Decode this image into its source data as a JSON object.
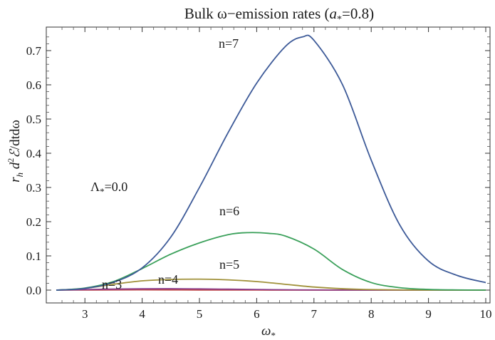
{
  "chart_data": {
    "type": "line",
    "title": "Bulk ω−emission rates (a₊=0.8)",
    "title_parts": {
      "prefix": "Bulk ω−emission rates (",
      "var": "a",
      "sub": "*",
      "suffix": "=0.8)"
    },
    "xlabel": "ω₊",
    "xlabel_parts": {
      "var": "ω",
      "sub": "*"
    },
    "ylabel": "r_h d²ℰ/dtdω",
    "ylabel_parts": {
      "r": "r",
      "h": "h",
      "d": " d",
      "exp": "2",
      "E": "ℰ",
      "rest": "/dtdω"
    },
    "xlim": [
      2.5,
      10
    ],
    "ylim": [
      0,
      0.75
    ],
    "xticks": [
      "3",
      "4",
      "5",
      "6",
      "7",
      "8",
      "9",
      "10"
    ],
    "yticks": [
      "0.0",
      "0.1",
      "0.2",
      "0.3",
      "0.4",
      "0.5",
      "0.6",
      "0.7"
    ],
    "grid": false,
    "annotations": [
      {
        "key": "lambda",
        "text": "Λ₊=0.0",
        "parts": {
          "var": "Λ",
          "sub": "*",
          "rest": "=0.0"
        }
      },
      {
        "key": "n7",
        "text": "n=7"
      },
      {
        "key": "n6",
        "text": "n=6"
      },
      {
        "key": "n5",
        "text": "n=5"
      },
      {
        "key": "n4",
        "text": "n=4"
      },
      {
        "key": "n3",
        "text": "n=3"
      }
    ],
    "series": [
      {
        "key": "n7",
        "color": "#3d5a98",
        "x": [
          2.5,
          3.0,
          3.5,
          4.0,
          4.5,
          5.0,
          5.5,
          6.0,
          6.5,
          6.8,
          7.0,
          7.5,
          8.0,
          8.5,
          9.0,
          9.5,
          10.0
        ],
        "y": [
          0.0,
          0.005,
          0.023,
          0.065,
          0.155,
          0.3,
          0.46,
          0.605,
          0.712,
          0.74,
          0.73,
          0.6,
          0.38,
          0.19,
          0.085,
          0.043,
          0.022
        ]
      },
      {
        "key": "n6",
        "color": "#3aa05a",
        "x": [
          2.5,
          3.0,
          3.5,
          4.0,
          4.5,
          5.0,
          5.5,
          5.85,
          6.2,
          6.5,
          7.0,
          7.5,
          8.0,
          8.5,
          9.0,
          9.5,
          10.0
        ],
        "y": [
          0.0,
          0.006,
          0.025,
          0.063,
          0.105,
          0.138,
          0.162,
          0.168,
          0.166,
          0.158,
          0.12,
          0.06,
          0.022,
          0.007,
          0.002,
          0.0005,
          0.0
        ]
      },
      {
        "key": "n5",
        "color": "#a0913a",
        "x": [
          2.5,
          3.0,
          3.5,
          4.0,
          4.5,
          5.0,
          5.5,
          6.0,
          6.5,
          7.0,
          7.5,
          8.0,
          8.5,
          9.0,
          10.0
        ],
        "y": [
          0.0,
          0.005,
          0.017,
          0.027,
          0.031,
          0.032,
          0.03,
          0.025,
          0.017,
          0.009,
          0.004,
          0.0015,
          0.0005,
          0.0,
          0.0
        ]
      },
      {
        "key": "n4",
        "color": "#8a3c8a",
        "x": [
          2.5,
          3.0,
          3.5,
          4.0,
          4.5,
          5.0,
          5.5,
          6.0,
          6.5,
          7.0,
          8.0,
          10.0
        ],
        "y": [
          0.0,
          0.0015,
          0.003,
          0.0038,
          0.004,
          0.0035,
          0.0027,
          0.0018,
          0.001,
          0.0005,
          0.0,
          0.0
        ]
      },
      {
        "key": "n3",
        "color": "#c04545",
        "x": [
          2.5,
          3.0,
          3.5,
          4.0,
          4.5,
          5.0,
          6.0,
          7.0,
          10.0
        ],
        "y": [
          0.0,
          0.0003,
          0.0006,
          0.0007,
          0.0006,
          0.0004,
          0.0002,
          0.0,
          0.0
        ]
      }
    ]
  }
}
